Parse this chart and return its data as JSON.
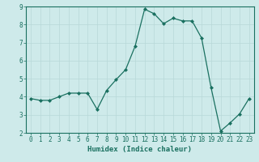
{
  "x": [
    0,
    1,
    2,
    3,
    4,
    5,
    6,
    7,
    8,
    9,
    10,
    11,
    12,
    13,
    14,
    15,
    16,
    17,
    18,
    19,
    20,
    21,
    22,
    23
  ],
  "y": [
    3.9,
    3.8,
    3.8,
    4.0,
    4.2,
    4.2,
    4.2,
    3.3,
    4.35,
    4.95,
    5.5,
    6.8,
    8.85,
    8.6,
    8.05,
    8.35,
    8.2,
    8.2,
    7.25,
    4.5,
    2.1,
    2.55,
    3.05,
    3.9
  ],
  "line_color": "#1a7060",
  "marker": "D",
  "markersize": 2.0,
  "linewidth": 0.9,
  "background_color": "#ceeaea",
  "grid_color": "#b8d8d8",
  "xlabel": "Humidex (Indice chaleur)",
  "xlim": [
    -0.5,
    23.5
  ],
  "ylim": [
    2,
    9
  ],
  "yticks": [
    2,
    3,
    4,
    5,
    6,
    7,
    8,
    9
  ],
  "xticks": [
    0,
    1,
    2,
    3,
    4,
    5,
    6,
    7,
    8,
    9,
    10,
    11,
    12,
    13,
    14,
    15,
    16,
    17,
    18,
    19,
    20,
    21,
    22,
    23
  ],
  "tick_color": "#1a7060",
  "label_color": "#1a7060",
  "tick_fontsize": 5.5,
  "xlabel_fontsize": 6.5
}
